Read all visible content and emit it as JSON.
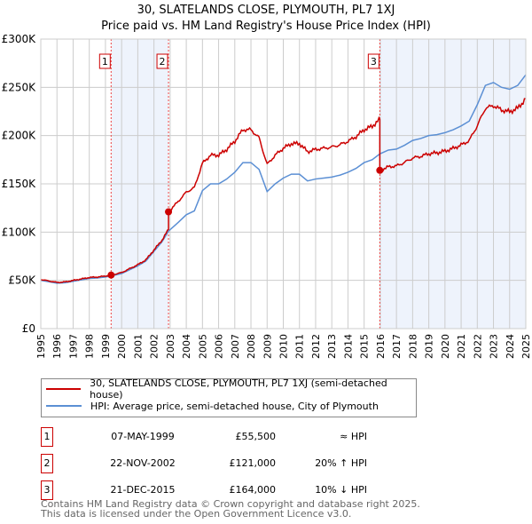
{
  "title_line1": "30, SLATELANDS CLOSE, PLYMOUTH, PL7 1XJ",
  "title_line2": "Price paid vs. HM Land Registry's House Price Index (HPI)",
  "colors": {
    "property": "#cc0000",
    "hpi": "#5b8fd4",
    "shade": "#eef3fc",
    "grid": "#cccccc"
  },
  "chart_data": {
    "type": "line",
    "title": "Price paid vs. HM Land Registry's House Price Index (HPI)",
    "xlim": [
      1995,
      2025
    ],
    "ylim": [
      0,
      300000
    ],
    "x_ticks": [
      "1995",
      "1996",
      "1997",
      "1998",
      "1999",
      "2000",
      "2001",
      "2002",
      "2003",
      "2004",
      "2005",
      "2006",
      "2007",
      "2008",
      "2009",
      "2010",
      "2011",
      "2012",
      "2013",
      "2014",
      "2015",
      "2016",
      "2017",
      "2018",
      "2019",
      "2020",
      "2021",
      "2022",
      "2023",
      "2024",
      "2025"
    ],
    "y_ticks": [
      {
        "v": 0,
        "label": "£0"
      },
      {
        "v": 50000,
        "label": "£50K"
      },
      {
        "v": 100000,
        "label": "£100K"
      },
      {
        "v": 150000,
        "label": "£150K"
      },
      {
        "v": 200000,
        "label": "£200K"
      },
      {
        "v": 250000,
        "label": "£250K"
      },
      {
        "v": 300000,
        "label": "£300K"
      }
    ],
    "grid": true,
    "hpi_series": {
      "name": "HPI: Average price, semi-detached house, City of Plymouth",
      "x": [
        1995,
        1995.5,
        1996,
        1996.5,
        1997,
        1997.5,
        1998,
        1998.5,
        1999,
        1999.35,
        2000,
        2000.5,
        2001,
        2001.5,
        2002,
        2002.5,
        2002.9,
        2003.5,
        2004,
        2004.5,
        2005,
        2005.5,
        2006,
        2006.5,
        2007,
        2007.5,
        2008,
        2008.5,
        2009,
        2009.5,
        2010,
        2010.5,
        2011,
        2011.5,
        2012,
        2012.5,
        2013,
        2013.5,
        2014,
        2014.5,
        2015,
        2015.5,
        2015.97,
        2016.5,
        2017,
        2017.5,
        2018,
        2018.5,
        2019,
        2019.5,
        2020,
        2020.5,
        2021,
        2021.5,
        2022,
        2022.5,
        2023,
        2023.5,
        2024,
        2024.5,
        2025
      ],
      "values": [
        50000,
        48500,
        47000,
        47500,
        49000,
        50500,
        52000,
        52500,
        53500,
        54500,
        57000,
        61000,
        65000,
        70000,
        80000,
        90000,
        101000,
        110000,
        118000,
        122000,
        143000,
        150000,
        150000,
        155000,
        162000,
        172000,
        172000,
        165000,
        142000,
        150000,
        156000,
        160000,
        160000,
        153000,
        155000,
        156000,
        157000,
        159000,
        162000,
        166000,
        172000,
        175000,
        181000,
        185000,
        186000,
        190000,
        195000,
        197000,
        200000,
        201000,
        203000,
        206000,
        210000,
        215000,
        232000,
        252000,
        255000,
        250000,
        248000,
        252000,
        263000
      ]
    },
    "property_series": {
      "name": "30, SLATELANDS CLOSE, PLYMOUTH, PL7 1XJ (semi-detached house)"
    },
    "sales": [
      {
        "n": "1",
        "x": 1999.35,
        "date": "07-MAY-1999",
        "price": 55500,
        "price_label": "£55,500",
        "hpi": "≈ HPI"
      },
      {
        "n": "2",
        "x": 2002.9,
        "date": "22-NOV-2002",
        "price": 121000,
        "price_label": "£121,000",
        "hpi": "20% ↑ HPI"
      },
      {
        "n": "3",
        "x": 2015.97,
        "date": "21-DEC-2015",
        "price": 164000,
        "price_label": "£164,000",
        "hpi": "10% ↓ HPI"
      }
    ]
  },
  "legend": {
    "property": "30, SLATELANDS CLOSE, PLYMOUTH, PL7 1XJ (semi-detached house)",
    "hpi": "HPI: Average price, semi-detached house, City of Plymouth"
  },
  "footer_line1": "Contains HM Land Registry data © Crown copyright and database right 2025.",
  "footer_line2": "This data is licensed under the Open Government Licence v3.0."
}
